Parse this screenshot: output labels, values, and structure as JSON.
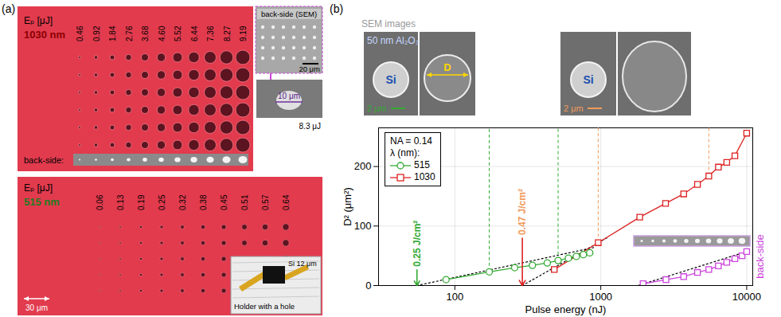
{
  "panel_a": {
    "label": "(a)",
    "top": {
      "energy_label": "Eₚ [μJ]",
      "wavelength": "1030 nm",
      "energies": [
        "0.46",
        "0.92",
        "1.84",
        "2.76",
        "3.68",
        "4.60",
        "5.52",
        "6.44",
        "7.36",
        "8.27",
        "9.19"
      ],
      "back_side_label": "back-side:"
    },
    "sem_inset": {
      "title": "back-side (SEM)",
      "scale_bar": "20 μm"
    },
    "zoom_inset": {
      "scale_bar": "10 μm",
      "energy": "8.3 μJ"
    },
    "bottom": {
      "energy_label": "Eₚ [μJ]",
      "wavelength": "515 nm",
      "energies": [
        "0.06",
        "0.13",
        "0.19",
        "0.25",
        "0.32",
        "0.38",
        "0.45",
        "0.51",
        "0.57",
        "0.64"
      ],
      "scale_bar": "30 μm"
    },
    "photo": {
      "sample": "Si 12 μm",
      "caption": "Holder with a hole"
    }
  },
  "panel_b": {
    "label": "(b)",
    "insets_title": "SEM images",
    "insets": [
      {
        "coating": "50 nm Al₂O₃",
        "material": "Si",
        "scale_bar": "2 μm",
        "color": "#33aa33"
      },
      {
        "diameter": "D",
        "color": "#33aa33"
      },
      {
        "material": "Si",
        "scale_bar": "2 μm",
        "color": "#f09a5a"
      },
      {
        "color": "#f09a5a"
      }
    ]
  },
  "chart_data": {
    "type": "line",
    "x_label": "Pulse energy (nJ)",
    "y_label": "D² (μm²)",
    "log": "x",
    "grid": true,
    "legend": "top-left",
    "legend_title": "NA = 0.14",
    "legend_subtitle": "λ (nm):",
    "xlim": [
      30,
      11000
    ],
    "xticks": [
      100,
      1000,
      10000
    ],
    "ylim": [
      0,
      265
    ],
    "yticks": [
      0,
      100,
      200
    ],
    "series": [
      {
        "name": "515",
        "color": "#33aa33",
        "marker": "circle",
        "line_style": "solid",
        "x": [
          87,
          172,
          257,
          340,
          430,
          510,
          600,
          680,
          760,
          840
        ],
        "values": [
          10,
          23,
          30,
          34,
          38,
          42,
          46,
          49,
          52,
          55
        ]
      },
      {
        "name": "1030",
        "color": "#dd2222",
        "marker": "square",
        "line_style": "solid",
        "x": [
          480,
          960,
          1850,
          2780,
          3700,
          4600,
          5500,
          6400,
          7300,
          8300,
          10000
        ],
        "values": [
          27,
          72,
          115,
          138,
          154,
          170,
          184,
          199,
          207,
          218,
          256
        ]
      }
    ],
    "unlisted_series": [
      {
        "name": "back-side",
        "color": "#cc44dd",
        "marker": "square",
        "line_style": "solid",
        "x": [
          1950,
          2800,
          3700,
          4600,
          5500,
          6400,
          7300,
          8300,
          9300,
          10000
        ],
        "values": [
          3,
          10,
          15,
          22,
          27,
          33,
          39,
          45,
          50,
          57
        ]
      }
    ],
    "fits": [
      {
        "color": "#000000",
        "line_style": "dotted",
        "x": [
          55,
          900
        ],
        "values": [
          0,
          64
        ]
      },
      {
        "color": "#000000",
        "line_style": "dotted",
        "x": [
          290,
          1100
        ],
        "values": [
          0,
          80
        ]
      },
      {
        "color": "#000000",
        "line_style": "dotted",
        "x": [
          1800,
          10000
        ],
        "values": [
          0,
          57
        ]
      }
    ],
    "annotations": [
      {
        "text": "0.25 J/cm²",
        "x": 55,
        "color": "#33aa33",
        "arrow_color": "#33aa33"
      },
      {
        "text": "0.47 J/cm²",
        "x": 290,
        "color": "#f09a5a",
        "arrow_color": "#dd2222"
      }
    ]
  }
}
